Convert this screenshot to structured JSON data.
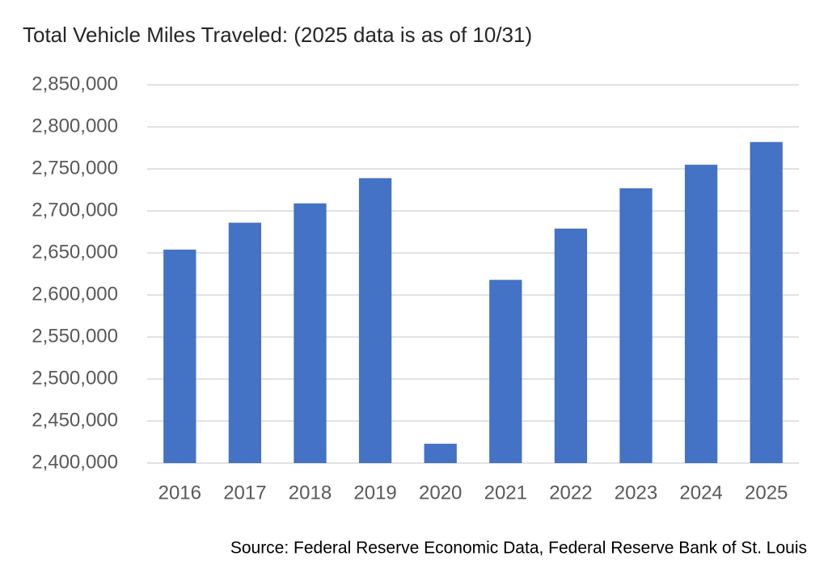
{
  "chart_data": {
    "type": "bar",
    "title": "Total Vehicle Miles Traveled: (2025 data is as of 10/31)",
    "source": "Source: Federal Reserve Economic Data, Federal Reserve Bank of St. Louis",
    "categories": [
      "2016",
      "2017",
      "2018",
      "2019",
      "2020",
      "2021",
      "2022",
      "2023",
      "2024",
      "2025"
    ],
    "values": [
      2654000,
      2686000,
      2709000,
      2739000,
      2423000,
      2618000,
      2679000,
      2727000,
      2755000,
      2782000
    ],
    "color": "#4472c4",
    "ylim": [
      2400000,
      2850000
    ],
    "yticks": [
      {
        "value": 2400000,
        "label": "2,400,000"
      },
      {
        "value": 2450000,
        "label": "2,450,000"
      },
      {
        "value": 2500000,
        "label": "2,500,000"
      },
      {
        "value": 2550000,
        "label": "2,550,000"
      },
      {
        "value": 2600000,
        "label": "2,600,000"
      },
      {
        "value": 2650000,
        "label": "2,650,000"
      },
      {
        "value": 2700000,
        "label": "2,700,000"
      },
      {
        "value": 2750000,
        "label": "2,750,000"
      },
      {
        "value": 2800000,
        "label": "2,800,000"
      },
      {
        "value": 2850000,
        "label": "2,850,000"
      }
    ],
    "grid": true
  }
}
